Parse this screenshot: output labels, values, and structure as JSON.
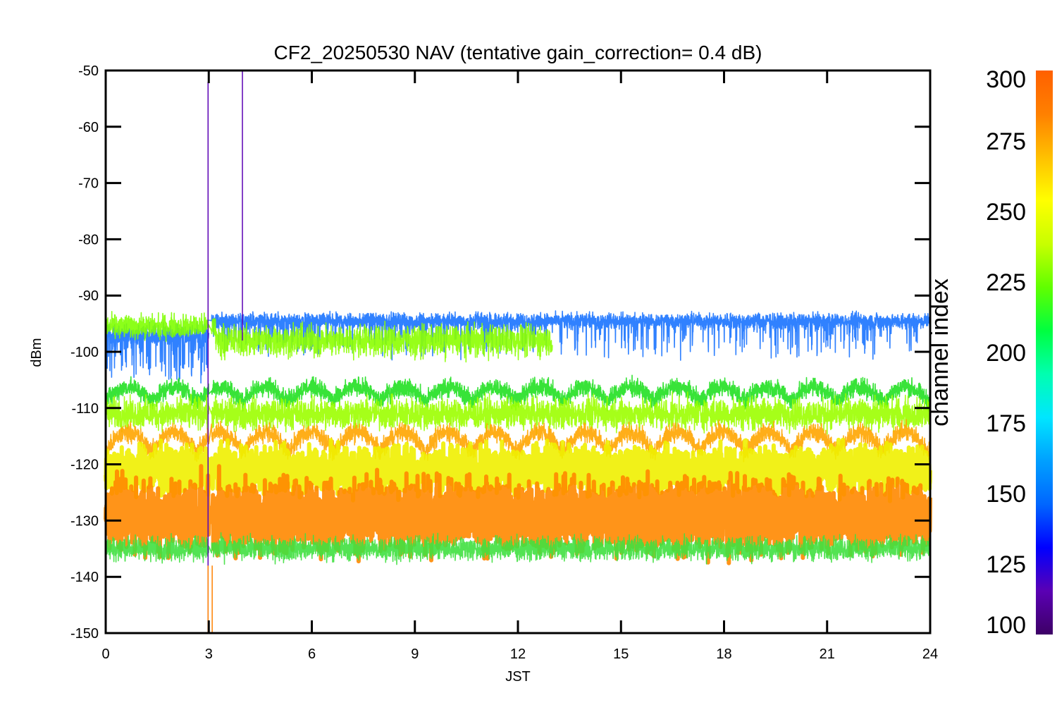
{
  "chart_data": {
    "type": "line",
    "title": "CF2_20250530 NAV (tentative gain_correction=  0.4 dB)",
    "xlabel": "JST",
    "ylabel": "dBm",
    "xlim": [
      0,
      24
    ],
    "ylim": [
      -150,
      -50
    ],
    "x_ticks": [
      "0",
      "3",
      "6",
      "9",
      "12",
      "15",
      "18",
      "21",
      "24"
    ],
    "y_ticks": [
      "-50",
      "-60",
      "-70",
      "-80",
      "-90",
      "-100",
      "-110",
      "-120",
      "-130",
      "-140",
      "-150"
    ],
    "colorbar": {
      "label": "channel index",
      "range": [
        100,
        300
      ],
      "ticks": [
        "300",
        "275",
        "250",
        "225",
        "200",
        "175",
        "150",
        "125",
        "100"
      ],
      "colormap": [
        "#3d0066",
        "#5a00b4",
        "#0000ff",
        "#0066ff",
        "#00a0ff",
        "#00e6ff",
        "#00ffb0",
        "#00ff40",
        "#60ff00",
        "#c8ff00",
        "#ffff00",
        "#ffc000",
        "#ff8000",
        "#ff6000"
      ]
    },
    "series": [
      {
        "channel": 150,
        "color": "#1a73ff",
        "base": -94.5,
        "noise": 1.0,
        "spike_depth": 6,
        "spike_rate": 0.12,
        "x_start": 3.0,
        "x_end": 24
      },
      {
        "channel": 150,
        "color": "#1a73ff",
        "base": -97,
        "noise": 1.5,
        "spike_depth": 8,
        "spike_rate": 0.2,
        "x_start": 0,
        "x_end": 3.0
      },
      {
        "channel": 255,
        "color": "#7fff00",
        "base": -95.5,
        "noise": 1.5,
        "x_start": 0,
        "x_end": 3.2
      },
      {
        "channel": 255,
        "color": "#8cff00",
        "base": -98,
        "noise": 2.0,
        "x_start": 3.2,
        "x_end": 13
      },
      {
        "channel": 245,
        "color": "#22e022",
        "base": -107.5,
        "amplitude": 2.5,
        "period": 1.33,
        "x_start": 0,
        "x_end": 24
      },
      {
        "channel": 262,
        "color": "#9cff00",
        "base": -111,
        "noise": 2.0,
        "x_start": 0,
        "x_end": 24
      },
      {
        "channel": 285,
        "color": "#ffa500",
        "base": -116,
        "amplitude": 3.5,
        "period": 1.33,
        "x_start": 0,
        "x_end": 24
      },
      {
        "channel": 275,
        "color": "#f0f000",
        "base": -121,
        "noise": 3.0,
        "x_start": 0,
        "x_end": 24
      },
      {
        "channel": 290,
        "color": "#ff8800",
        "base": -129,
        "noise": 4.5,
        "x_start": 0,
        "x_end": 24
      },
      {
        "channel": 250,
        "color": "#40e040",
        "base": -135,
        "noise": 1.5,
        "x_start": 0,
        "x_end": 24
      }
    ],
    "spikes": [
      {
        "x": 2.98,
        "y_top": -52,
        "y_bottom": -150,
        "color": "#5a00b4"
      },
      {
        "x": 3.98,
        "y_top": -50,
        "y_bottom": -98,
        "color": "#5a00b4"
      },
      {
        "x": 2.98,
        "y_top": -138,
        "y_bottom": -150,
        "color": "#ff8000"
      },
      {
        "x": 3.1,
        "y_top": -138,
        "y_bottom": -150,
        "color": "#ff8000"
      }
    ],
    "gap": {
      "x_start": 3.0,
      "x_end": 3.08
    }
  }
}
